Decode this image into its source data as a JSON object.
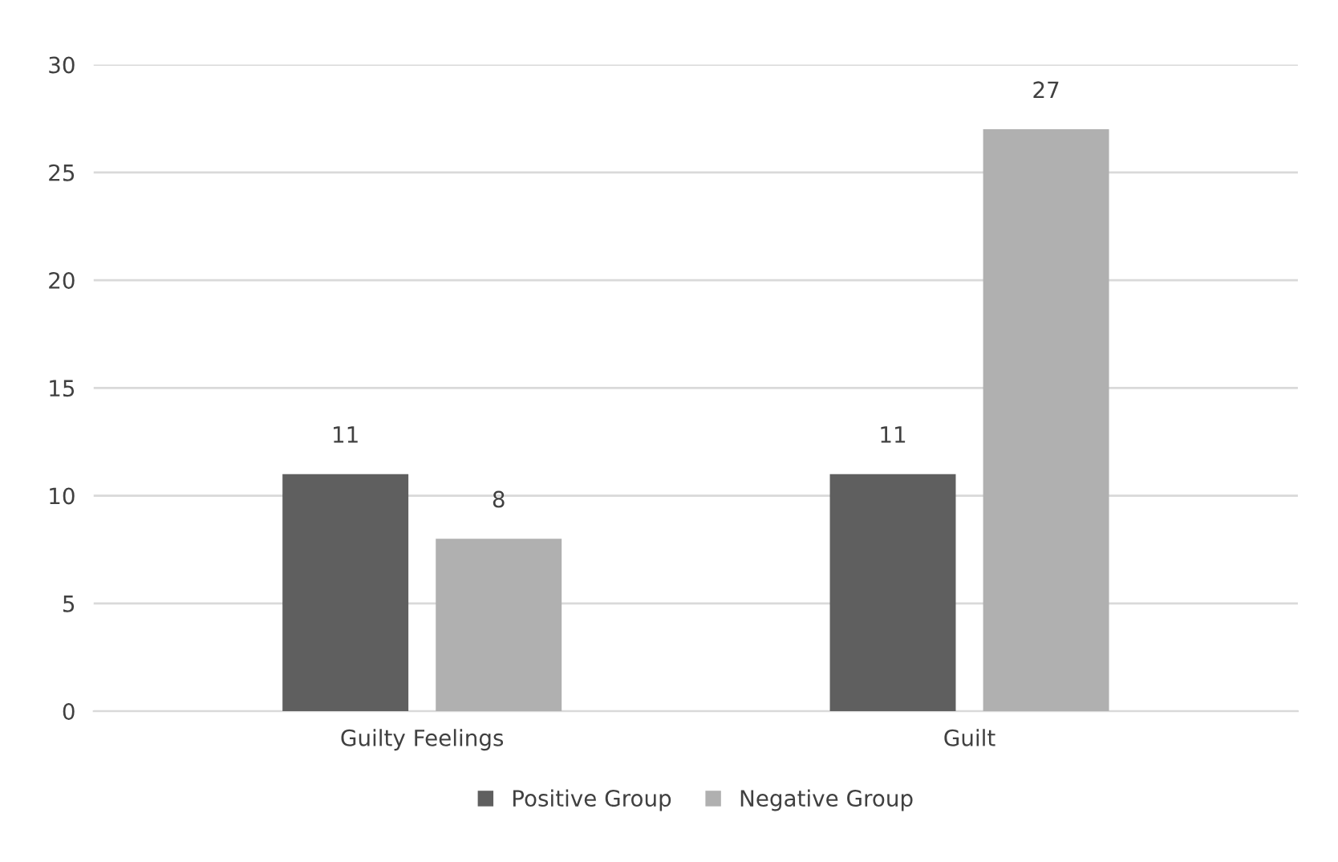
{
  "chart_data": {
    "type": "bar",
    "categories": [
      "Guilty Feelings",
      "Guilt"
    ],
    "series": [
      {
        "name": "Positive Group",
        "color": "#5f5f5f",
        "values": [
          11,
          11
        ]
      },
      {
        "name": "Negative Group",
        "color": "#b0b0b0",
        "values": [
          8,
          27
        ]
      }
    ],
    "ylim": [
      0,
      30
    ],
    "yticks": [
      0,
      5,
      10,
      15,
      20,
      25,
      30
    ],
    "grid": "y",
    "legend": "bottom",
    "data_labels": true
  }
}
